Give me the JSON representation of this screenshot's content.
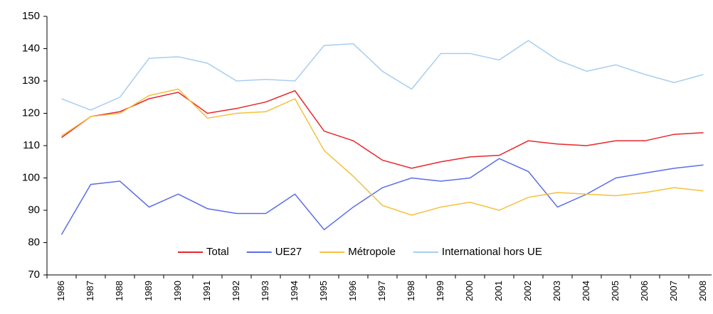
{
  "chart_data": {
    "type": "line",
    "categories": [
      "1986",
      "1987",
      "1988",
      "1989",
      "1990",
      "1991",
      "1992",
      "1993",
      "1994",
      "1995",
      "1996",
      "1997",
      "1998",
      "1999",
      "2000",
      "2001",
      "2002",
      "2003",
      "2004",
      "2005",
      "2006",
      "2007",
      "2008"
    ],
    "series": [
      {
        "name": "Total",
        "color": "#e8252b",
        "values": [
          112.5,
          119,
          120.5,
          124.5,
          126.5,
          120,
          121.5,
          123.5,
          127,
          114.5,
          111.5,
          105.5,
          103,
          105,
          106.5,
          107,
          111.5,
          110.5,
          110,
          111.5,
          111.5,
          113.5,
          114
        ]
      },
      {
        "name": "UE27",
        "color": "#5b6ee8",
        "values": [
          82.5,
          98,
          99,
          91,
          95,
          90.5,
          89,
          89,
          95,
          84,
          91,
          97,
          100,
          99,
          100,
          106,
          102,
          91,
          95,
          100,
          101.5,
          103,
          104
        ]
      },
      {
        "name": "Métropole",
        "color": "#f5c03a",
        "values": [
          113,
          119,
          120,
          125.5,
          127.5,
          118.5,
          120,
          120.5,
          124.5,
          108.5,
          100.5,
          91.5,
          88.5,
          91,
          92.5,
          90,
          94,
          95.5,
          95,
          94.5,
          95.5,
          97,
          96
        ]
      },
      {
        "name": "International hors UE",
        "color": "#a8cdf0",
        "values": [
          124.5,
          121,
          125,
          137,
          137.5,
          135.5,
          130,
          130.5,
          130,
          141,
          141.5,
          133,
          127.5,
          138.5,
          138.5,
          136.5,
          142.5,
          136.5,
          133,
          135,
          132,
          129.5,
          132
        ]
      }
    ],
    "ylim": [
      70,
      150
    ],
    "yticks": [
      70,
      80,
      90,
      100,
      110,
      120,
      130,
      140,
      150
    ],
    "grid": false,
    "legend": "bottom"
  }
}
